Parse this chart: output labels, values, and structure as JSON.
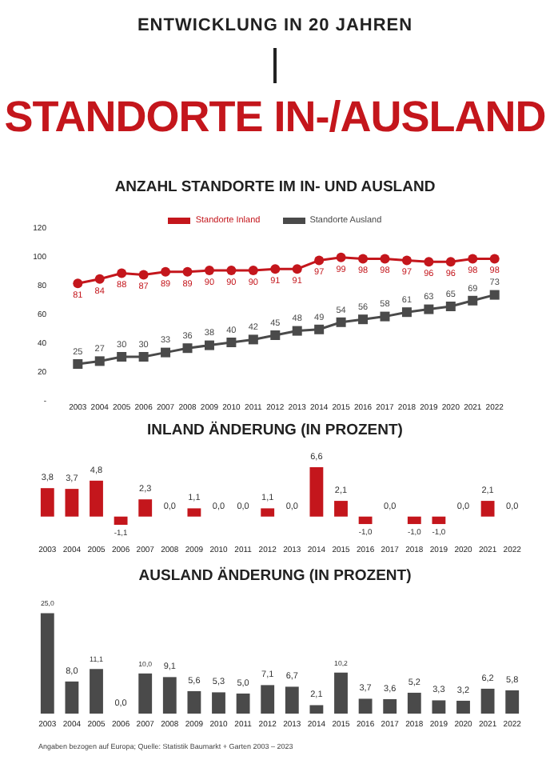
{
  "chart_data": [
    {
      "type": "other",
      "title": "ENTWICKLUNG IN 20 JAHREN",
      "subtitle": "STANDORTE IN-/AUSLAND"
    },
    {
      "type": "line",
      "title": "ANZAHL STANDORTE IM IN- UND AUSLAND",
      "categories": [
        "2003",
        "2004",
        "2005",
        "2006",
        "2007",
        "2008",
        "2009",
        "2010",
        "2011",
        "2012",
        "2013",
        "2014",
        "2015",
        "2016",
        "2017",
        "2018",
        "2019",
        "2020",
        "2021",
        "2022"
      ],
      "series": [
        {
          "name": "Standorte Inland",
          "color": "#c4161c",
          "marker": "circle",
          "values": [
            81,
            84,
            88,
            87,
            89,
            89,
            90,
            90,
            90,
            91,
            91,
            97,
            99,
            98,
            98,
            97,
            96,
            96,
            98,
            98
          ]
        },
        {
          "name": "Standorte Ausland",
          "color": "#4a4a4a",
          "marker": "square",
          "values": [
            25,
            27,
            30,
            30,
            33,
            36,
            38,
            40,
            42,
            45,
            48,
            49,
            54,
            56,
            58,
            61,
            63,
            65,
            69,
            73
          ]
        }
      ],
      "ylim": [
        0,
        120
      ],
      "yticks": [
        {
          "value": 0,
          "label": "-"
        },
        20,
        40,
        60,
        80,
        100,
        120
      ],
      "data_labels": true,
      "legend": "top",
      "grid": false
    },
    {
      "type": "bar",
      "title": "INLAND ÄNDERUNG (IN PROZENT)",
      "categories": [
        "2003",
        "2004",
        "2005",
        "2006",
        "2007",
        "2008",
        "2009",
        "2010",
        "2011",
        "2012",
        "2013",
        "2014",
        "2015",
        "2016",
        "2017",
        "2018",
        "2019",
        "2020",
        "2021",
        "2022"
      ],
      "values": [
        3.8,
        3.7,
        4.8,
        -1.1,
        2.3,
        0,
        1.1,
        0,
        0,
        1.1,
        0,
        6.6,
        2.1,
        -1.0,
        0,
        -1.0,
        -1.0,
        0,
        2.1,
        0
      ],
      "value_labels": [
        "3,8",
        "3,7",
        "4,8",
        "-1,1",
        "2,3",
        "0,0",
        "1,1",
        "0,0",
        "0,0",
        "1,1",
        "0,0",
        "6,6",
        "2,1",
        "-1,0",
        "0,0",
        "-1,0",
        "-1,0",
        "0,0",
        "2,1",
        "0,0"
      ],
      "color": "#c4161c"
    },
    {
      "type": "bar",
      "title": "AUSLAND ÄNDERUNG (IN PROZENT)",
      "categories": [
        "2003",
        "2004",
        "2005",
        "2006",
        "2007",
        "2008",
        "2009",
        "2010",
        "2011",
        "2012",
        "2013",
        "2014",
        "2015",
        "2016",
        "2017",
        "2018",
        "2019",
        "2020",
        "2021",
        "2022"
      ],
      "values": [
        25.0,
        8.0,
        11.1,
        0.0,
        10.0,
        9.1,
        5.6,
        5.3,
        5.0,
        7.1,
        6.7,
        2.1,
        10.2,
        3.7,
        3.6,
        5.2,
        3.3,
        3.2,
        6.2,
        5.8
      ],
      "value_labels": [
        "25,0",
        "8,0",
        "11,1",
        "0,0",
        "10,0",
        "9,1",
        "5,6",
        "5,3",
        "5,0",
        "7,1",
        "6,7",
        "2,1",
        "10,2",
        "3,7",
        "3,6",
        "5,2",
        "3,3",
        "3,2",
        "6,2",
        "5,8"
      ],
      "color": "#4a4a4a",
      "annotations": [
        "Angaben bezogen auf Europa; Quelle: Statistik Baumarkt + Garten 2003 – 2023"
      ]
    }
  ]
}
